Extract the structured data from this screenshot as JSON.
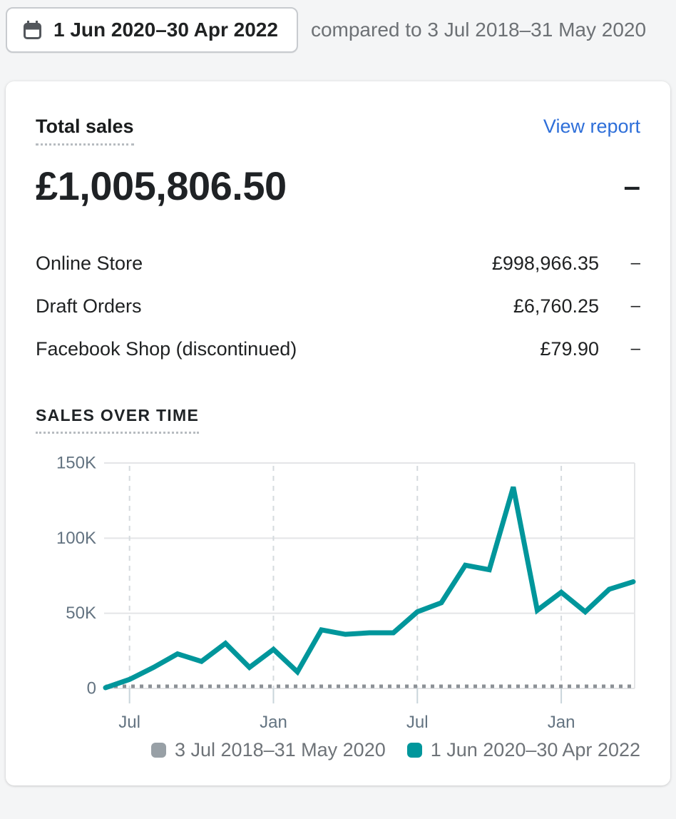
{
  "header": {
    "date_range_label": "1 Jun 2020–30 Apr 2022",
    "compared_to": "compared to 3 Jul 2018–31 May 2020"
  },
  "card": {
    "title": "Total sales",
    "view_report_label": "View report",
    "total_value": "£1,005,806.50",
    "total_comparison": "–",
    "channels": [
      {
        "label": "Online Store",
        "value": "£998,966.35",
        "comparison": "–"
      },
      {
        "label": "Draft Orders",
        "value": "£6,760.25",
        "comparison": "–"
      },
      {
        "label": "Facebook Shop (discontinued)",
        "value": "£79.90",
        "comparison": "–"
      }
    ],
    "section_title": "SALES OVER TIME"
  },
  "chart_data": {
    "type": "line",
    "title": "Sales over time",
    "xlabel": "",
    "ylabel": "",
    "ylim": [
      0,
      150
    ],
    "y_unit": "K (GBP)",
    "grid": true,
    "legend_position": "bottom",
    "x": [
      "Jun 2020",
      "Jul 2020",
      "Aug 2020",
      "Sep 2020",
      "Oct 2020",
      "Nov 2020",
      "Dec 2020",
      "Jan 2021",
      "Feb 2021",
      "Mar 2021",
      "Apr 2021",
      "May 2021",
      "Jun 2021",
      "Jul 2021",
      "Aug 2021",
      "Sep 2021",
      "Oct 2021",
      "Nov 2021",
      "Dec 2021",
      "Jan 2022",
      "Feb 2022",
      "Mar 2022",
      "Apr 2022"
    ],
    "series": [
      {
        "name": "1 Jun 2020–30 Apr 2022",
        "style": "solid",
        "color": "#00969b",
        "values_k": [
          0.5,
          6,
          14,
          23,
          18,
          30,
          14,
          26,
          11,
          39,
          36,
          37,
          37,
          51,
          57,
          82,
          79,
          134,
          52,
          64,
          51,
          66,
          71
        ]
      },
      {
        "name": "3 Jul 2018–31 May 2020",
        "style": "dotted",
        "color": "#8c9196",
        "values_k": [
          0,
          0,
          0,
          0,
          0,
          0,
          0,
          0,
          0,
          0,
          0,
          0,
          0,
          0,
          0,
          0,
          0,
          0,
          0,
          0,
          0,
          0,
          0
        ]
      }
    ],
    "y_ticks": [
      {
        "label": "0",
        "value": 0
      },
      {
        "label": "50K",
        "value": 50
      },
      {
        "label": "100K",
        "value": 100
      },
      {
        "label": "150K",
        "value": 150
      }
    ],
    "x_ticks": [
      {
        "label": "Jul",
        "index": 1
      },
      {
        "label": "Jan",
        "index": 7
      },
      {
        "label": "Jul",
        "index": 13
      },
      {
        "label": "Jan",
        "index": 19
      }
    ],
    "colors": {
      "gridline": "#e4e5e7",
      "v_gridline_dashed": "#d5dade",
      "tick_mark": "#c9d5db",
      "axis_label": "#637381"
    }
  },
  "legend": [
    {
      "label": "3 Jul 2018–31 May 2020",
      "color": "#98a0a6"
    },
    {
      "label": "1 Jun 2020–30 Apr 2022",
      "color": "#00969b"
    }
  ]
}
